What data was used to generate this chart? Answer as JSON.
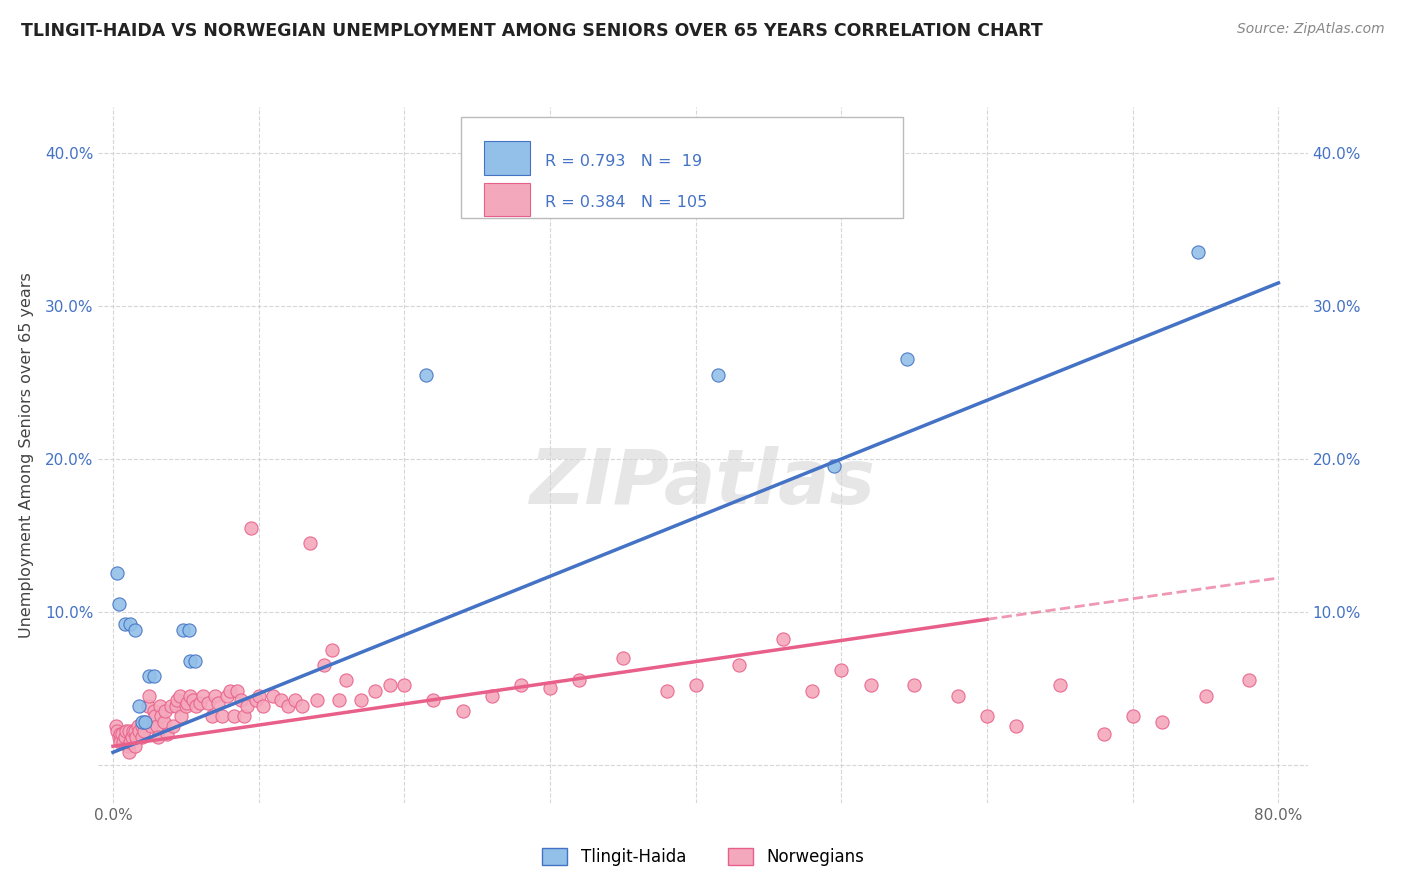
{
  "title": "TLINGIT-HAIDA VS NORWEGIAN UNEMPLOYMENT AMONG SENIORS OVER 65 YEARS CORRELATION CHART",
  "source": "Source: ZipAtlas.com",
  "ylabel": "Unemployment Among Seniors over 65 years",
  "xlim": [
    -0.01,
    0.82
  ],
  "ylim": [
    -0.025,
    0.43
  ],
  "xticks": [
    0.0,
    0.1,
    0.2,
    0.3,
    0.4,
    0.5,
    0.6,
    0.7,
    0.8
  ],
  "yticks": [
    0.0,
    0.1,
    0.2,
    0.3,
    0.4
  ],
  "color_tlingit": "#92C0E8",
  "color_norwegian": "#F4A8BC",
  "color_tlingit_line": "#4472C4",
  "color_norwegian_line": "#E8608A",
  "background_color": "#FFFFFF",
  "tlingit_scatter_x": [
    0.003,
    0.004,
    0.008,
    0.012,
    0.015,
    0.018,
    0.02,
    0.022,
    0.025,
    0.028,
    0.048,
    0.052,
    0.053,
    0.056,
    0.215,
    0.415,
    0.495,
    0.545,
    0.745
  ],
  "tlingit_scatter_y": [
    0.125,
    0.105,
    0.092,
    0.092,
    0.088,
    0.038,
    0.028,
    0.028,
    0.058,
    0.058,
    0.088,
    0.088,
    0.068,
    0.068,
    0.255,
    0.255,
    0.195,
    0.265,
    0.335
  ],
  "norwegian_scatter_x": [
    0.002,
    0.003,
    0.004,
    0.005,
    0.005,
    0.006,
    0.007,
    0.008,
    0.009,
    0.01,
    0.011,
    0.011,
    0.012,
    0.013,
    0.014,
    0.015,
    0.015,
    0.016,
    0.017,
    0.018,
    0.02,
    0.02,
    0.021,
    0.022,
    0.024,
    0.025,
    0.026,
    0.028,
    0.029,
    0.03,
    0.031,
    0.032,
    0.033,
    0.035,
    0.036,
    0.037,
    0.04,
    0.041,
    0.043,
    0.044,
    0.046,
    0.047,
    0.05,
    0.051,
    0.053,
    0.055,
    0.057,
    0.06,
    0.062,
    0.065,
    0.068,
    0.07,
    0.072,
    0.075,
    0.078,
    0.08,
    0.083,
    0.085,
    0.088,
    0.09,
    0.092,
    0.095,
    0.098,
    0.1,
    0.103,
    0.11,
    0.115,
    0.12,
    0.125,
    0.13,
    0.135,
    0.14,
    0.145,
    0.15,
    0.155,
    0.16,
    0.17,
    0.18,
    0.19,
    0.2,
    0.22,
    0.24,
    0.26,
    0.28,
    0.3,
    0.32,
    0.35,
    0.38,
    0.4,
    0.43,
    0.46,
    0.48,
    0.5,
    0.52,
    0.55,
    0.58,
    0.6,
    0.62,
    0.65,
    0.68,
    0.7,
    0.72,
    0.75,
    0.78
  ],
  "norwegian_scatter_y": [
    0.025,
    0.022,
    0.018,
    0.02,
    0.015,
    0.02,
    0.015,
    0.018,
    0.022,
    0.012,
    0.022,
    0.008,
    0.015,
    0.018,
    0.022,
    0.012,
    0.022,
    0.018,
    0.025,
    0.022,
    0.025,
    0.018,
    0.022,
    0.028,
    0.038,
    0.045,
    0.025,
    0.035,
    0.032,
    0.025,
    0.018,
    0.038,
    0.032,
    0.028,
    0.035,
    0.02,
    0.038,
    0.025,
    0.038,
    0.042,
    0.045,
    0.032,
    0.038,
    0.04,
    0.045,
    0.042,
    0.038,
    0.04,
    0.045,
    0.04,
    0.032,
    0.045,
    0.04,
    0.032,
    0.045,
    0.048,
    0.032,
    0.048,
    0.042,
    0.032,
    0.038,
    0.155,
    0.042,
    0.045,
    0.038,
    0.045,
    0.042,
    0.038,
    0.042,
    0.038,
    0.145,
    0.042,
    0.065,
    0.075,
    0.042,
    0.055,
    0.042,
    0.048,
    0.052,
    0.052,
    0.042,
    0.035,
    0.045,
    0.052,
    0.05,
    0.055,
    0.07,
    0.048,
    0.052,
    0.065,
    0.082,
    0.048,
    0.062,
    0.052,
    0.052,
    0.045,
    0.032,
    0.025,
    0.052,
    0.02,
    0.032,
    0.028,
    0.045,
    0.055
  ],
  "tline_x0": 0.0,
  "tline_y0": 0.008,
  "tline_x1": 0.8,
  "tline_y1": 0.315,
  "nline_x0": 0.0,
  "nline_y0": 0.012,
  "nline_x1": 0.6,
  "nline_y1": 0.095,
  "nline_dash_x0": 0.6,
  "nline_dash_y0": 0.095,
  "nline_dash_x1": 0.8,
  "nline_dash_y1": 0.122
}
